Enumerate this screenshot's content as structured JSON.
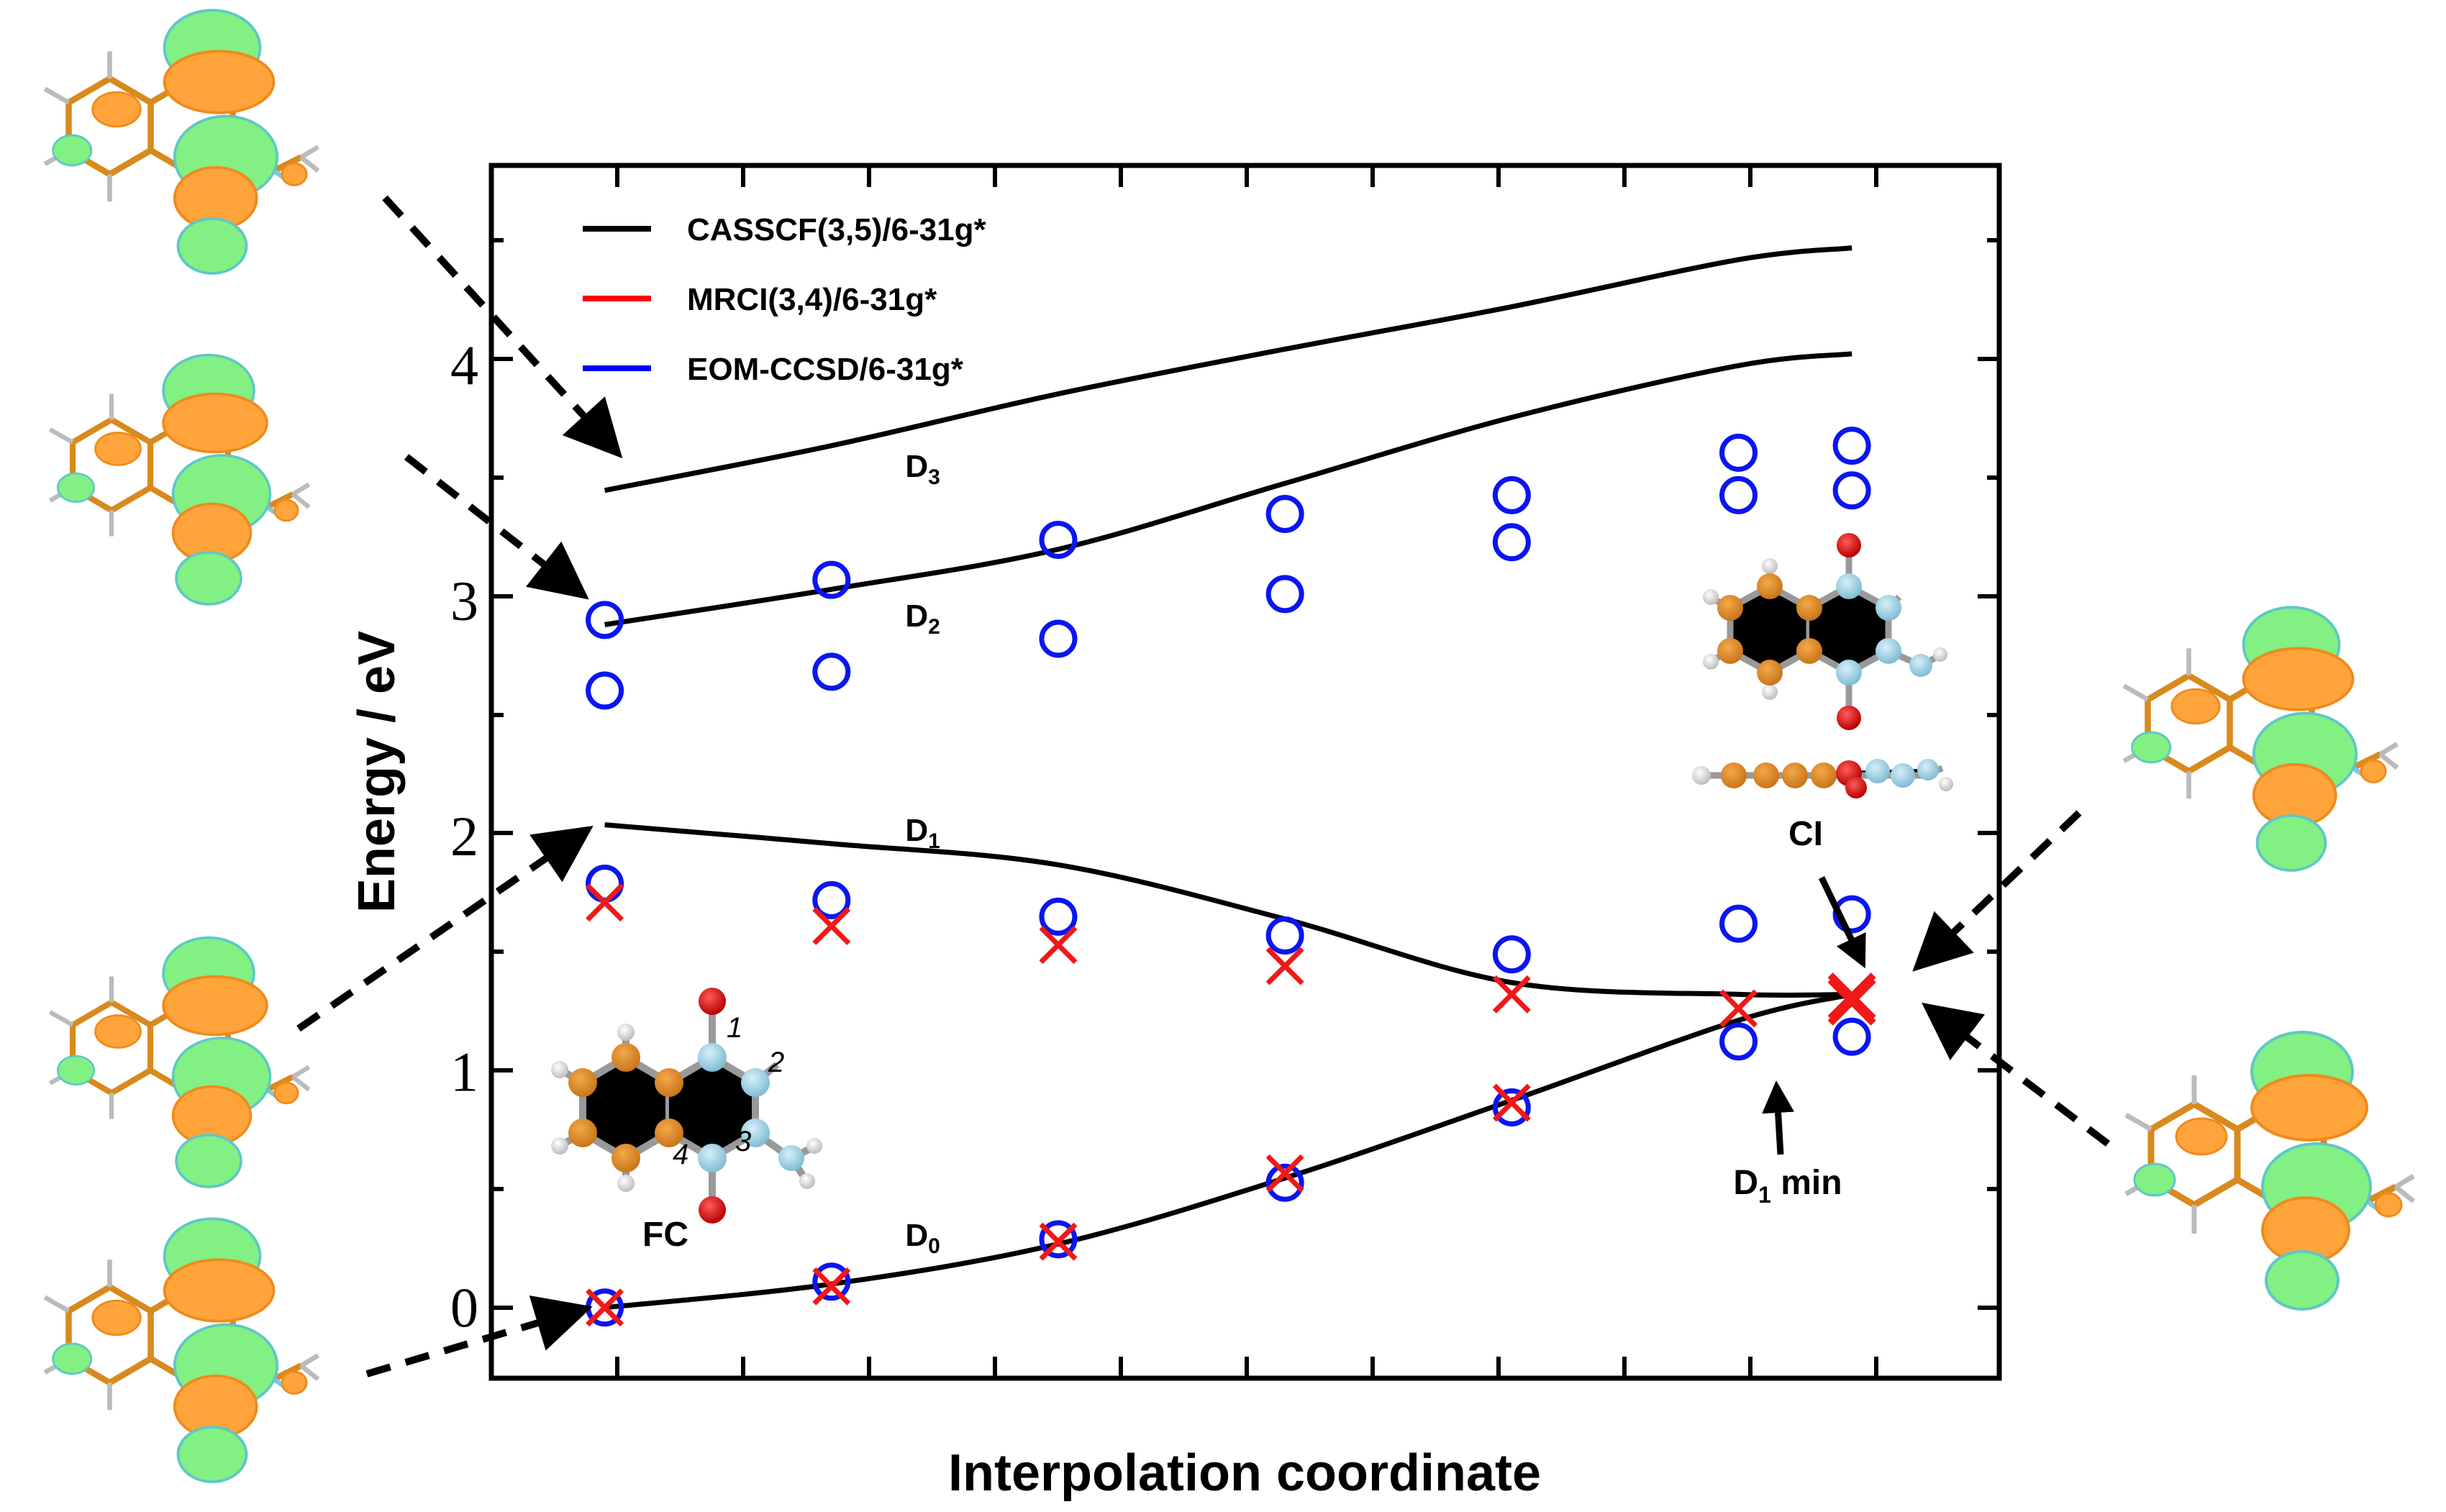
{
  "chart_data": {
    "type": "line",
    "xlabel": "Interpolation coordinate",
    "ylabel": "Energy / eV",
    "x": [
      0,
      1,
      2,
      3,
      4,
      5,
      5.5
    ],
    "ylim": [
      -0.3,
      4.85
    ],
    "xlim": [
      -0.5,
      6.15
    ],
    "yticks": [
      0,
      1,
      2,
      3,
      4
    ],
    "legend": [
      {
        "label": "CASSCF(3,5)/6-31g*",
        "color": "#000000"
      },
      {
        "label": "MRCI(3,4)/6-31g*",
        "color": "#ff0000"
      },
      {
        "label": "EOM-CCSD/6-31g*",
        "color": "#0000ff"
      }
    ],
    "casscf_series": [
      {
        "name": "D0",
        "label_base": "D",
        "label_sub": "0",
        "values": [
          0.0,
          0.1,
          0.27,
          0.55,
          0.88,
          1.22,
          1.33
        ]
      },
      {
        "name": "D1",
        "label_base": "D",
        "label_sub": "1",
        "values": [
          2.05,
          1.97,
          1.88,
          1.65,
          1.38,
          1.33,
          1.33
        ]
      },
      {
        "name": "D2",
        "label_base": "D",
        "label_sub": "2",
        "values": [
          2.9,
          3.05,
          3.22,
          3.5,
          3.78,
          4.0,
          4.05
        ]
      },
      {
        "name": "D3",
        "label_base": "D",
        "label_sub": "3",
        "values": [
          3.47,
          3.66,
          3.88,
          4.07,
          4.25,
          4.45,
          4.5
        ]
      }
    ],
    "mrci_points": [
      {
        "x": 0,
        "y": 0.0
      },
      {
        "x": 1,
        "y": 0.09
      },
      {
        "x": 2,
        "y": 0.28
      },
      {
        "x": 3,
        "y": 0.57
      },
      {
        "x": 4,
        "y": 0.87
      },
      {
        "x": 5,
        "y": 1.27
      },
      {
        "x": 5.5,
        "y": 1.3
      },
      {
        "x": 0,
        "y": 1.72
      },
      {
        "x": 1,
        "y": 1.62
      },
      {
        "x": 2,
        "y": 1.54
      },
      {
        "x": 3,
        "y": 1.45
      },
      {
        "x": 4,
        "y": 1.33
      },
      {
        "x": 5.5,
        "y": 1.32
      }
    ],
    "eomccsd_points": [
      {
        "x": 0,
        "y": 0.0
      },
      {
        "x": 1,
        "y": 0.11
      },
      {
        "x": 2,
        "y": 0.29
      },
      {
        "x": 3,
        "y": 0.53
      },
      {
        "x": 4,
        "y": 0.85
      },
      {
        "x": 5,
        "y": 1.13
      },
      {
        "x": 5.5,
        "y": 1.15
      },
      {
        "x": 0,
        "y": 1.8
      },
      {
        "x": 1,
        "y": 1.73
      },
      {
        "x": 2,
        "y": 1.66
      },
      {
        "x": 3,
        "y": 1.58
      },
      {
        "x": 4,
        "y": 1.5
      },
      {
        "x": 5,
        "y": 1.63
      },
      {
        "x": 5.5,
        "y": 1.67
      },
      {
        "x": 0,
        "y": 2.62
      },
      {
        "x": 1,
        "y": 2.7
      },
      {
        "x": 2,
        "y": 2.84
      },
      {
        "x": 3,
        "y": 3.03
      },
      {
        "x": 4,
        "y": 3.25
      },
      {
        "x": 5,
        "y": 3.45
      },
      {
        "x": 5.5,
        "y": 3.47
      },
      {
        "x": 0,
        "y": 2.92
      },
      {
        "x": 1,
        "y": 3.09
      },
      {
        "x": 2,
        "y": 3.26
      },
      {
        "x": 3,
        "y": 3.37
      },
      {
        "x": 4,
        "y": 3.45
      },
      {
        "x": 5,
        "y": 3.63
      },
      {
        "x": 5.5,
        "y": 3.66
      }
    ],
    "annotations": {
      "fc": "FC",
      "ci": "CI",
      "d1min_base": "D",
      "d1min_sub": "1",
      "d1min_rest": " min",
      "atom_numbers": [
        "1",
        "2",
        "3",
        "4"
      ]
    }
  }
}
